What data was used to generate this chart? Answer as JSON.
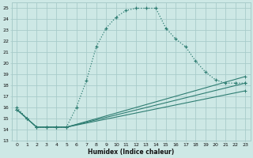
{
  "title": "",
  "xlabel": "Humidex (Indice chaleur)",
  "bg_color": "#cde8e5",
  "grid_color": "#a8ccca",
  "line_color": "#2e7d72",
  "xlim": [
    -0.5,
    23.5
  ],
  "ylim": [
    13,
    25.5
  ],
  "xticks": [
    0,
    1,
    2,
    3,
    4,
    5,
    6,
    7,
    8,
    9,
    10,
    11,
    12,
    13,
    14,
    15,
    16,
    17,
    18,
    19,
    20,
    21,
    22,
    23
  ],
  "yticks": [
    13,
    14,
    15,
    16,
    17,
    18,
    19,
    20,
    21,
    22,
    23,
    24,
    25
  ],
  "curve1_x": [
    0,
    1,
    2,
    3,
    4,
    5,
    6,
    7,
    8,
    9,
    10,
    11,
    12,
    13,
    14,
    15,
    16,
    17,
    18,
    19,
    20,
    21,
    22,
    23
  ],
  "curve1_y": [
    16.0,
    15.0,
    14.2,
    14.2,
    14.2,
    14.2,
    16.0,
    18.4,
    21.5,
    23.2,
    24.2,
    24.8,
    25.0,
    25.0,
    25.0,
    23.2,
    22.2,
    21.5,
    20.2,
    19.2,
    18.5,
    18.2,
    18.2,
    18.2
  ],
  "line1_x": [
    0,
    1,
    2,
    3,
    4,
    5,
    23
  ],
  "line1_y": [
    15.8,
    15.0,
    14.2,
    14.2,
    14.2,
    14.2,
    18.2
  ],
  "line2_x": [
    0,
    1,
    2,
    3,
    4,
    5,
    23
  ],
  "line2_y": [
    15.8,
    15.0,
    14.2,
    14.2,
    14.2,
    14.2,
    17.5
  ],
  "line3_x": [
    0,
    1,
    2,
    3,
    4,
    5,
    23
  ],
  "line3_y": [
    15.8,
    15.0,
    14.2,
    14.2,
    14.2,
    14.2,
    18.8
  ]
}
